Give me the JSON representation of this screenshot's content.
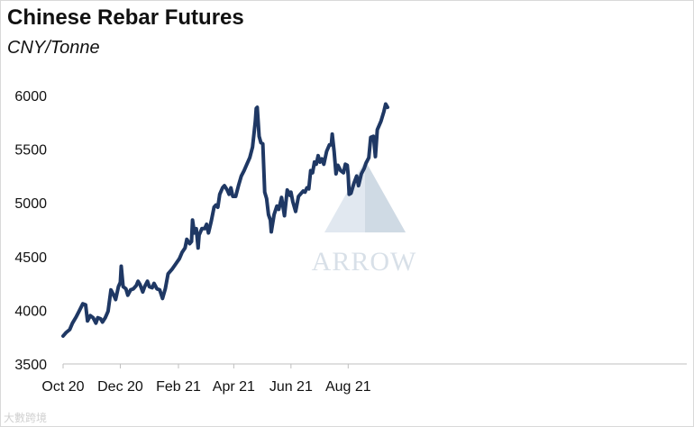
{
  "title": "Chinese Rebar Futures",
  "subtitle": "CNY/Tonne",
  "watermark": "ARROW",
  "footer_mark": "大數跨境",
  "colors": {
    "line": "#1f3864",
    "axis": "#bfbfbf",
    "watermark": "#b9c7d6"
  },
  "chart_data": {
    "type": "line",
    "title": "Chinese Rebar Futures",
    "ylabel": "CNY/Tonne",
    "xlabel": "",
    "ylim": [
      3500,
      6000
    ],
    "yticks": [
      3500,
      4000,
      4500,
      5000,
      5500,
      6000
    ],
    "xticks": [
      {
        "date": "2020-10-01",
        "label": "Oct 20"
      },
      {
        "date": "2020-12-01",
        "label": "Dec 20"
      },
      {
        "date": "2021-02-01",
        "label": "Feb 21"
      },
      {
        "date": "2021-04-01",
        "label": "Apr 21"
      },
      {
        "date": "2021-06-01",
        "label": "Jun 21"
      },
      {
        "date": "2021-08-01",
        "label": "Aug 21"
      }
    ],
    "grid": false,
    "legend": false,
    "series": [
      {
        "points": [
          [
            "2020-10-01",
            3760
          ],
          [
            "2020-10-04",
            3790
          ],
          [
            "2020-10-08",
            3820
          ],
          [
            "2020-10-11",
            3880
          ],
          [
            "2020-10-15",
            3940
          ],
          [
            "2020-10-18",
            3990
          ],
          [
            "2020-10-22",
            4060
          ],
          [
            "2020-10-25",
            4050
          ],
          [
            "2020-10-27",
            3900
          ],
          [
            "2020-10-30",
            3950
          ],
          [
            "2020-11-02",
            3930
          ],
          [
            "2020-11-05",
            3880
          ],
          [
            "2020-11-07",
            3930
          ],
          [
            "2020-11-10",
            3920
          ],
          [
            "2020-11-12",
            3890
          ],
          [
            "2020-11-15",
            3930
          ],
          [
            "2020-11-18",
            3990
          ],
          [
            "2020-11-21",
            4190
          ],
          [
            "2020-11-24",
            4140
          ],
          [
            "2020-11-26",
            4100
          ],
          [
            "2020-11-29",
            4220
          ],
          [
            "2020-12-01",
            4260
          ],
          [
            "2020-12-02",
            4410
          ],
          [
            "2020-12-04",
            4220
          ],
          [
            "2020-12-07",
            4200
          ],
          [
            "2020-12-09",
            4140
          ],
          [
            "2020-12-12",
            4190
          ],
          [
            "2020-12-15",
            4200
          ],
          [
            "2020-12-18",
            4230
          ],
          [
            "2020-12-20",
            4270
          ],
          [
            "2020-12-22",
            4240
          ],
          [
            "2020-12-25",
            4170
          ],
          [
            "2020-12-27",
            4220
          ],
          [
            "2020-12-30",
            4270
          ],
          [
            "2021-01-01",
            4220
          ],
          [
            "2021-01-04",
            4210
          ],
          [
            "2021-01-06",
            4250
          ],
          [
            "2021-01-09",
            4200
          ],
          [
            "2021-01-12",
            4190
          ],
          [
            "2021-01-15",
            4110
          ],
          [
            "2021-01-18",
            4200
          ],
          [
            "2021-01-21",
            4340
          ],
          [
            "2021-01-25",
            4380
          ],
          [
            "2021-01-29",
            4430
          ],
          [
            "2021-02-02",
            4480
          ],
          [
            "2021-02-05",
            4540
          ],
          [
            "2021-02-08",
            4580
          ],
          [
            "2021-02-10",
            4660
          ],
          [
            "2021-02-13",
            4620
          ],
          [
            "2021-02-15",
            4640
          ],
          [
            "2021-02-16",
            4840
          ],
          [
            "2021-02-18",
            4720
          ],
          [
            "2021-02-20",
            4760
          ],
          [
            "2021-02-22",
            4580
          ],
          [
            "2021-02-23",
            4700
          ],
          [
            "2021-02-26",
            4760
          ],
          [
            "2021-03-01",
            4760
          ],
          [
            "2021-03-03",
            4800
          ],
          [
            "2021-03-05",
            4720
          ],
          [
            "2021-03-08",
            4830
          ],
          [
            "2021-03-11",
            4960
          ],
          [
            "2021-03-13",
            4980
          ],
          [
            "2021-03-15",
            4960
          ],
          [
            "2021-03-17",
            5080
          ],
          [
            "2021-03-20",
            5140
          ],
          [
            "2021-03-22",
            5160
          ],
          [
            "2021-03-25",
            5120
          ],
          [
            "2021-03-27",
            5080
          ],
          [
            "2021-03-29",
            5140
          ],
          [
            "2021-03-31",
            5060
          ],
          [
            "2021-04-03",
            5060
          ],
          [
            "2021-04-06",
            5160
          ],
          [
            "2021-04-09",
            5250
          ],
          [
            "2021-04-12",
            5300
          ],
          [
            "2021-04-15",
            5360
          ],
          [
            "2021-04-18",
            5420
          ],
          [
            "2021-04-21",
            5520
          ],
          [
            "2021-04-24",
            5760
          ],
          [
            "2021-04-25",
            5880
          ],
          [
            "2021-04-26",
            5890
          ],
          [
            "2021-04-28",
            5620
          ],
          [
            "2021-04-30",
            5560
          ],
          [
            "2021-05-02",
            5550
          ],
          [
            "2021-05-04",
            5100
          ],
          [
            "2021-05-06",
            5040
          ],
          [
            "2021-05-08",
            4890
          ],
          [
            "2021-05-10",
            4840
          ],
          [
            "2021-05-11",
            4730
          ],
          [
            "2021-05-14",
            4890
          ],
          [
            "2021-05-17",
            4970
          ],
          [
            "2021-05-19",
            4940
          ],
          [
            "2021-05-22",
            5050
          ],
          [
            "2021-05-25",
            4880
          ],
          [
            "2021-05-28",
            5120
          ],
          [
            "2021-05-31",
            5070
          ],
          [
            "2021-06-01",
            5100
          ],
          [
            "2021-06-03",
            5010
          ],
          [
            "2021-06-06",
            4920
          ],
          [
            "2021-06-09",
            5060
          ],
          [
            "2021-06-11",
            5080
          ],
          [
            "2021-06-14",
            5110
          ],
          [
            "2021-06-16",
            5100
          ],
          [
            "2021-06-18",
            5140
          ],
          [
            "2021-06-20",
            5130
          ],
          [
            "2021-06-22",
            5300
          ],
          [
            "2021-06-24",
            5280
          ],
          [
            "2021-06-26",
            5380
          ],
          [
            "2021-06-28",
            5360
          ],
          [
            "2021-06-30",
            5440
          ],
          [
            "2021-07-02",
            5380
          ],
          [
            "2021-07-04",
            5410
          ],
          [
            "2021-07-06",
            5360
          ],
          [
            "2021-07-09",
            5480
          ],
          [
            "2021-07-12",
            5540
          ],
          [
            "2021-07-14",
            5540
          ],
          [
            "2021-07-15",
            5640
          ],
          [
            "2021-07-17",
            5480
          ],
          [
            "2021-07-19",
            5270
          ],
          [
            "2021-07-21",
            5350
          ],
          [
            "2021-07-24",
            5300
          ],
          [
            "2021-07-27",
            5280
          ],
          [
            "2021-07-29",
            5360
          ],
          [
            "2021-07-31",
            5350
          ],
          [
            "2021-08-01",
            5260
          ],
          [
            "2021-08-02",
            5080
          ],
          [
            "2021-08-04",
            5090
          ],
          [
            "2021-08-07",
            5180
          ],
          [
            "2021-08-10",
            5250
          ],
          [
            "2021-08-12",
            5160
          ],
          [
            "2021-08-15",
            5270
          ],
          [
            "2021-08-18",
            5320
          ],
          [
            "2021-08-20",
            5370
          ],
          [
            "2021-08-23",
            5420
          ],
          [
            "2021-08-25",
            5610
          ],
          [
            "2021-08-28",
            5620
          ],
          [
            "2021-08-30",
            5430
          ],
          [
            "2021-09-01",
            5680
          ],
          [
            "2021-09-05",
            5760
          ],
          [
            "2021-09-08",
            5850
          ],
          [
            "2021-09-10",
            5920
          ],
          [
            "2021-09-12",
            5890
          ]
        ]
      }
    ]
  }
}
